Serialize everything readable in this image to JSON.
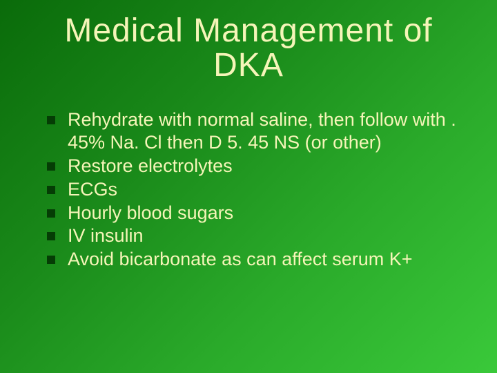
{
  "slide": {
    "title": "Medical Management of DKA",
    "title_color": "#f5f5b8",
    "title_fontsize": 48,
    "title_font": "Impact",
    "background_gradient": [
      "#0a6b0a",
      "#1a8a1a",
      "#2aaa2a",
      "#3ac93a"
    ],
    "bullet_marker_color": "#053d05",
    "bullet_marker_shape": "square",
    "bullet_text_color": "#f5f5b8",
    "bullet_fontsize": 27,
    "bullets": [
      "Rehydrate with normal saline, then follow with . 45% Na. Cl then D 5. 45 NS (or other)",
      "Restore electrolytes",
      "ECGs",
      "Hourly blood sugars",
      "IV insulin",
      "Avoid bicarbonate as can affect serum K+"
    ]
  }
}
